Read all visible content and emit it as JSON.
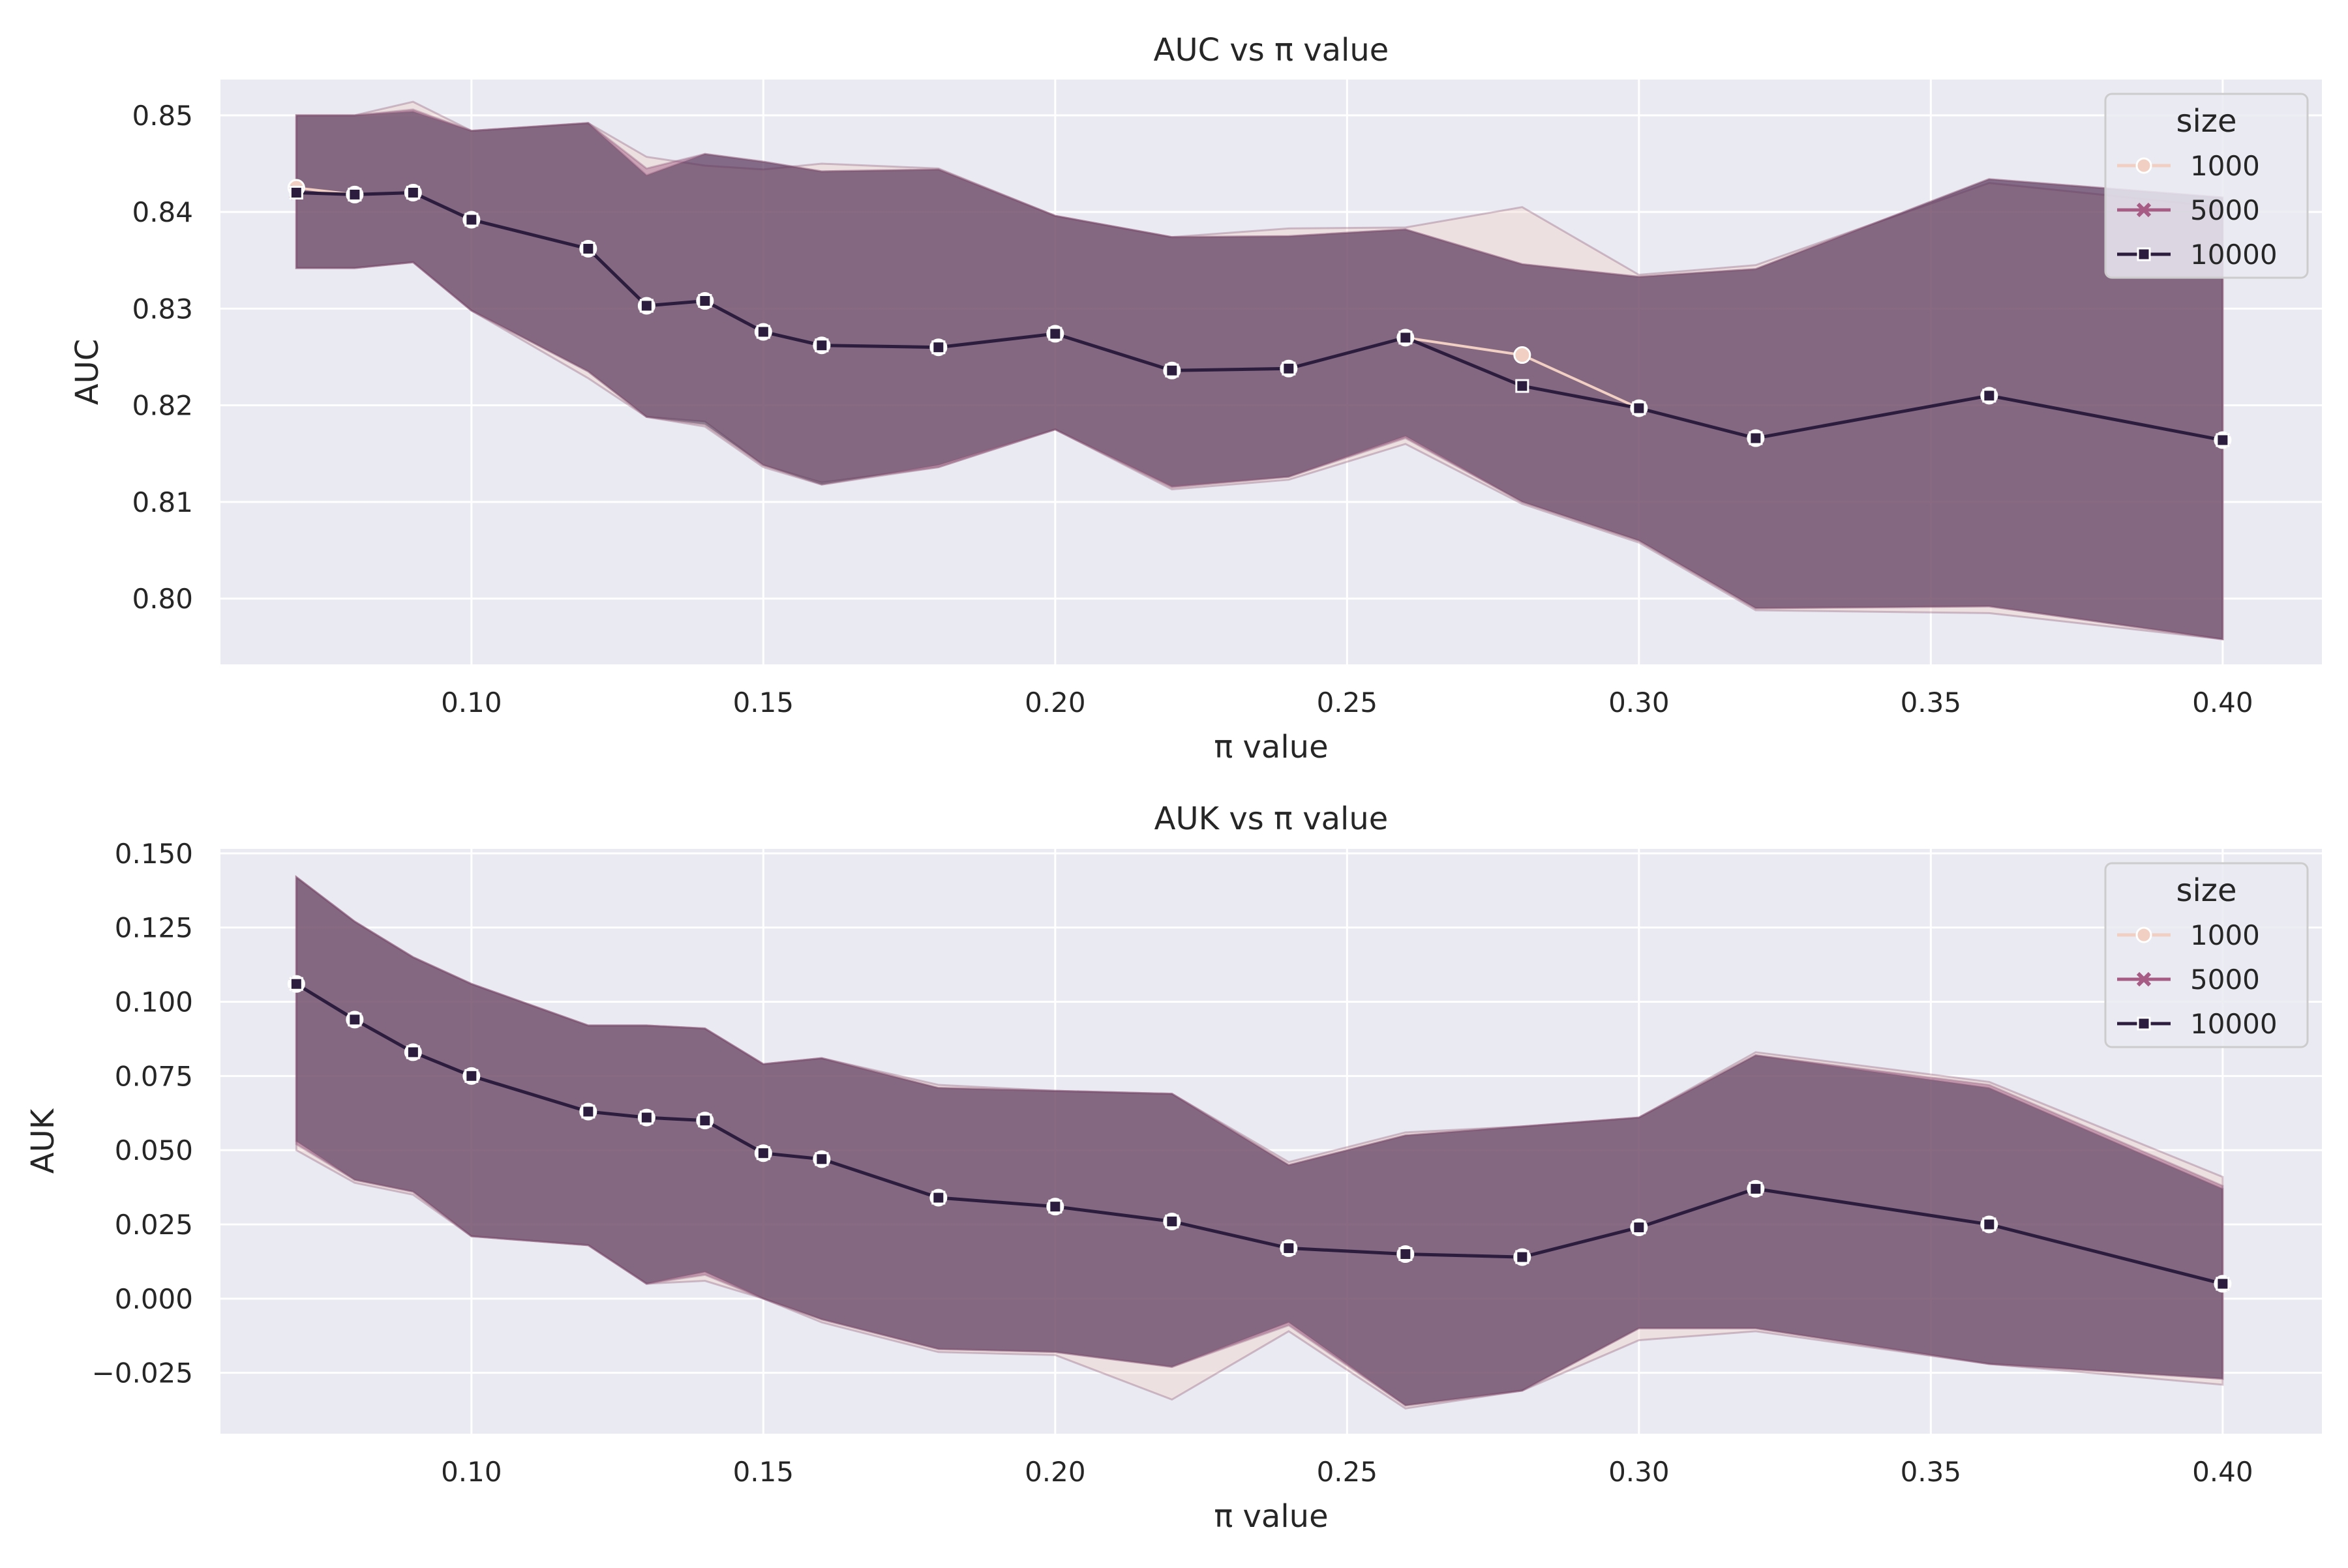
{
  "colors": {
    "background": "#eaeaf2",
    "grid": "#ffffff",
    "band": "#8c5a78",
    "series_1000": "#f1cfc2",
    "series_5000": "#a65c85",
    "series_10000": "#2c1d3e"
  },
  "chart_data": [
    {
      "type": "line",
      "title": "AUC vs π value",
      "xlabel": "π value",
      "ylabel": "AUC",
      "xlim": [
        0.057,
        0.417
      ],
      "ylim": [
        0.7932,
        0.8537
      ],
      "xticks": [
        0.1,
        0.15,
        0.2,
        0.25,
        0.3,
        0.35,
        0.4
      ],
      "xtick_labels": [
        "0.10",
        "0.15",
        "0.20",
        "0.25",
        "0.30",
        "0.35",
        "0.40"
      ],
      "yticks": [
        0.8,
        0.81,
        0.82,
        0.83,
        0.84,
        0.85
      ],
      "ytick_labels": [
        "0.80",
        "0.81",
        "0.82",
        "0.83",
        "0.84",
        "0.85"
      ],
      "legend": {
        "title": "size",
        "position": "top-right",
        "entries": [
          "1000",
          "5000",
          "10000"
        ]
      },
      "x": [
        0.07,
        0.08,
        0.09,
        0.1,
        0.12,
        0.13,
        0.14,
        0.15,
        0.16,
        0.18,
        0.2,
        0.22,
        0.24,
        0.26,
        0.28,
        0.3,
        0.32,
        0.36,
        0.4
      ],
      "series": [
        {
          "name": "1000",
          "marker": "circle",
          "values": [
            0.8425,
            0.8418,
            0.842,
            0.8392,
            0.8362,
            0.8303,
            0.8308,
            0.8276,
            0.8262,
            0.826,
            0.8274,
            0.8236,
            0.8238,
            0.827,
            0.8252,
            0.8197,
            0.8166,
            0.821,
            0.8164
          ],
          "ci_low": [
            0.8342,
            0.8342,
            0.8348,
            0.8298,
            0.8228,
            0.8188,
            0.8178,
            0.8136,
            0.8118,
            0.8136,
            0.8175,
            0.8113,
            0.8123,
            0.816,
            0.8098,
            0.8058,
            0.7988,
            0.7985,
            0.7958
          ],
          "ci_high": [
            0.85,
            0.85,
            0.8514,
            0.8484,
            0.8492,
            0.8457,
            0.8448,
            0.8444,
            0.845,
            0.8445,
            0.8396,
            0.8374,
            0.8383,
            0.8384,
            0.8405,
            0.8335,
            0.8345,
            0.843,
            0.8405
          ]
        },
        {
          "name": "5000",
          "marker": "x",
          "values": [
            0.842,
            0.8418,
            0.842,
            0.8392,
            0.8362,
            0.8303,
            0.8308,
            0.8276,
            0.8262,
            0.826,
            0.8274,
            0.8236,
            0.8238,
            0.827,
            0.822,
            0.8197,
            0.8166,
            0.821,
            0.8164
          ],
          "ci_low": [
            0.8342,
            0.8342,
            0.8348,
            0.8298,
            0.8235,
            0.8188,
            0.8183,
            0.8138,
            0.812,
            0.8136,
            0.8175,
            0.8115,
            0.8126,
            0.8166,
            0.81,
            0.806,
            0.799,
            0.7992,
            0.7958
          ],
          "ci_high": [
            0.85,
            0.85,
            0.8506,
            0.8484,
            0.8492,
            0.8445,
            0.846,
            0.8452,
            0.8442,
            0.8444,
            0.8396,
            0.8374,
            0.8375,
            0.8382,
            0.8346,
            0.8333,
            0.8341,
            0.8434,
            0.8415
          ]
        },
        {
          "name": "10000",
          "marker": "square",
          "values": [
            0.842,
            0.8418,
            0.842,
            0.8392,
            0.8362,
            0.8303,
            0.8308,
            0.8276,
            0.8262,
            0.826,
            0.8274,
            0.8236,
            0.8238,
            0.827,
            0.822,
            0.8197,
            0.8166,
            0.821,
            0.8164
          ],
          "ci_low": [
            0.8342,
            0.8342,
            0.8348,
            0.8298,
            0.8235,
            0.8188,
            0.818,
            0.8138,
            0.8118,
            0.8138,
            0.8175,
            0.8116,
            0.8126,
            0.8168,
            0.81,
            0.806,
            0.799,
            0.7992,
            0.7958
          ],
          "ci_high": [
            0.85,
            0.85,
            0.8504,
            0.8484,
            0.8492,
            0.8438,
            0.846,
            0.8452,
            0.8442,
            0.8444,
            0.8396,
            0.8374,
            0.8375,
            0.8382,
            0.8346,
            0.8333,
            0.8341,
            0.8434,
            0.8415
          ]
        }
      ]
    },
    {
      "type": "line",
      "title": "AUK vs π value",
      "xlabel": "π value",
      "ylabel": "AUK",
      "xlim": [
        0.057,
        0.417
      ],
      "ylim": [
        -0.0455,
        0.1515
      ],
      "xticks": [
        0.1,
        0.15,
        0.2,
        0.25,
        0.3,
        0.35,
        0.4
      ],
      "xtick_labels": [
        "0.10",
        "0.15",
        "0.20",
        "0.25",
        "0.30",
        "0.35",
        "0.40"
      ],
      "yticks": [
        -0.025,
        0.0,
        0.025,
        0.05,
        0.075,
        0.1,
        0.125,
        0.15
      ],
      "ytick_labels": [
        "−0.025",
        "0.000",
        "0.025",
        "0.050",
        "0.075",
        "0.100",
        "0.125",
        "0.150"
      ],
      "legend": {
        "title": "size",
        "position": "top-right",
        "entries": [
          "1000",
          "5000",
          "10000"
        ]
      },
      "x": [
        0.07,
        0.08,
        0.09,
        0.1,
        0.12,
        0.13,
        0.14,
        0.15,
        0.16,
        0.18,
        0.2,
        0.22,
        0.24,
        0.26,
        0.28,
        0.3,
        0.32,
        0.36,
        0.4
      ],
      "series": [
        {
          "name": "1000",
          "marker": "circle",
          "values": [
            0.106,
            0.094,
            0.083,
            0.075,
            0.063,
            0.061,
            0.06,
            0.049,
            0.047,
            0.034,
            0.031,
            0.026,
            0.017,
            0.015,
            0.014,
            0.024,
            0.037,
            0.025,
            0.005
          ],
          "ci_low": [
            0.05,
            0.039,
            0.035,
            0.021,
            0.018,
            0.005,
            0.006,
            0.0,
            -0.008,
            -0.018,
            -0.019,
            -0.034,
            -0.011,
            -0.037,
            -0.031,
            -0.014,
            -0.011,
            -0.022,
            -0.029
          ],
          "ci_high": [
            0.142,
            0.127,
            0.115,
            0.106,
            0.092,
            0.092,
            0.091,
            0.079,
            0.081,
            0.072,
            0.07,
            0.069,
            0.046,
            0.056,
            0.058,
            0.061,
            0.083,
            0.073,
            0.041
          ]
        },
        {
          "name": "5000",
          "marker": "x",
          "values": [
            0.106,
            0.094,
            0.083,
            0.075,
            0.063,
            0.061,
            0.06,
            0.049,
            0.047,
            0.034,
            0.031,
            0.026,
            0.017,
            0.015,
            0.014,
            0.024,
            0.037,
            0.025,
            0.005
          ],
          "ci_low": [
            0.052,
            0.04,
            0.036,
            0.021,
            0.018,
            0.005,
            0.008,
            0.0,
            -0.007,
            -0.017,
            -0.018,
            -0.023,
            -0.009,
            -0.036,
            -0.031,
            -0.01,
            -0.01,
            -0.022,
            -0.027
          ],
          "ci_high": [
            0.142,
            0.127,
            0.115,
            0.106,
            0.092,
            0.092,
            0.091,
            0.079,
            0.081,
            0.071,
            0.07,
            0.069,
            0.045,
            0.055,
            0.058,
            0.061,
            0.082,
            0.072,
            0.038
          ]
        },
        {
          "name": "10000",
          "marker": "square",
          "values": [
            0.106,
            0.094,
            0.083,
            0.075,
            0.063,
            0.061,
            0.06,
            0.049,
            0.047,
            0.034,
            0.031,
            0.026,
            0.017,
            0.015,
            0.014,
            0.024,
            0.037,
            0.025,
            0.005
          ],
          "ci_low": [
            0.053,
            0.04,
            0.036,
            0.021,
            0.018,
            0.005,
            0.009,
            0.0,
            -0.007,
            -0.017,
            -0.018,
            -0.023,
            -0.008,
            -0.036,
            -0.031,
            -0.01,
            -0.01,
            -0.022,
            -0.027
          ],
          "ci_high": [
            0.142,
            0.127,
            0.115,
            0.106,
            0.092,
            0.092,
            0.091,
            0.079,
            0.081,
            0.071,
            0.07,
            0.069,
            0.045,
            0.055,
            0.058,
            0.061,
            0.082,
            0.071,
            0.037
          ]
        }
      ]
    }
  ]
}
